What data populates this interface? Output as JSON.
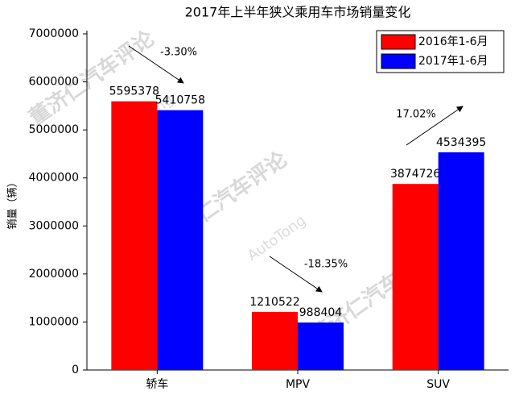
{
  "chart_data": {
    "type": "bar",
    "title": "2017年上半年狭义乘用车市场销量变化",
    "y_label": "销量（辆）",
    "categories": [
      "轿车",
      "MPV",
      "SUV"
    ],
    "series": [
      {
        "name": "2016年1-6月",
        "color": "#ff0000",
        "values": [
          5595378,
          1210522,
          3874726
        ]
      },
      {
        "name": "2017年1-6月",
        "color": "#0000ff",
        "values": [
          5410758,
          988404,
          4534395
        ]
      }
    ],
    "annotations": [
      "-3.30%",
      "-18.35%",
      "17.02%"
    ],
    "watermark": [
      "董济仁汽车评论",
      "AutoTong"
    ],
    "ylim": [
      0,
      7000000
    ],
    "yticks": [
      0,
      1000000,
      2000000,
      3000000,
      4000000,
      5000000,
      6000000,
      7000000
    ],
    "legend": "top-right"
  }
}
